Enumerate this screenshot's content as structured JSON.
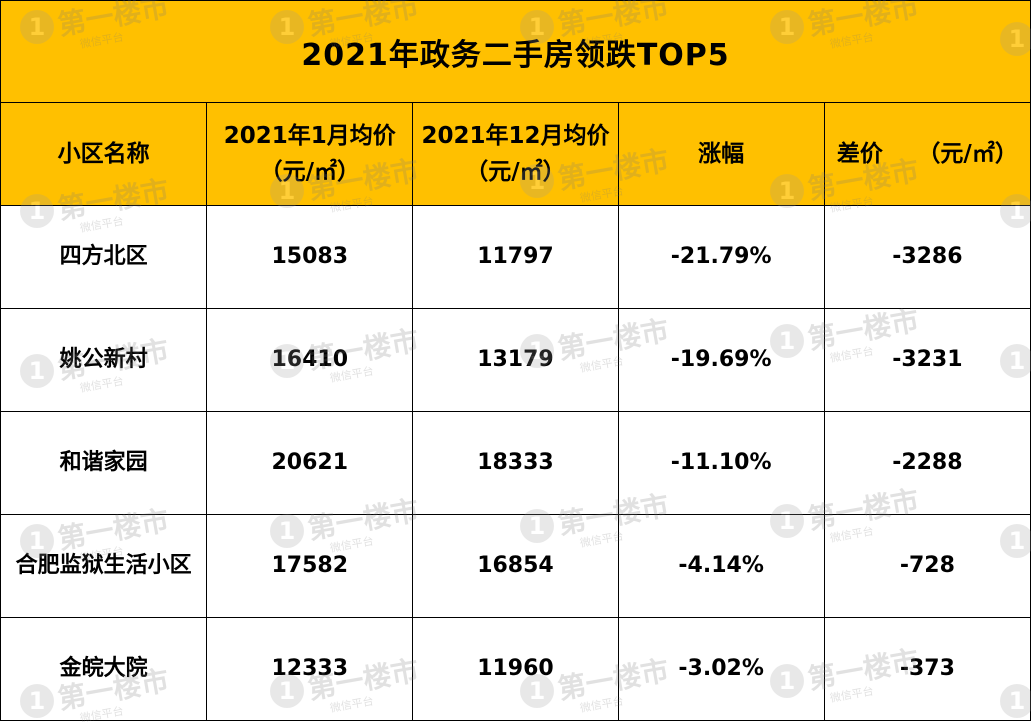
{
  "chart_data": {
    "type": "table",
    "title": "2021年政务二手房领跌TOP5",
    "columns": [
      "小区名称",
      "2021年1月均价（元/㎡）",
      "2021年12月均价（元/㎡）",
      "涨幅",
      "差价　　（元/㎡）"
    ],
    "rows": [
      {
        "name": "四方北区",
        "jan": "15083",
        "dec": "11797",
        "change": "-21.79%",
        "diff": "-3286"
      },
      {
        "name": "姚公新村",
        "jan": "16410",
        "dec": "13179",
        "change": "-19.69%",
        "diff": "-3231"
      },
      {
        "name": "和谐家园",
        "jan": "20621",
        "dec": "18333",
        "change": "-11.10%",
        "diff": "-2288"
      },
      {
        "name": "合肥监狱生活小区",
        "jan": "17582",
        "dec": "16854",
        "change": "-4.14%",
        "diff": "-728"
      },
      {
        "name": "金皖大院",
        "jan": "12333",
        "dec": "11960",
        "change": "-3.02%",
        "diff": "-373"
      }
    ]
  },
  "watermark": {
    "logo_digit": "1",
    "text": "第一楼市",
    "subtext": "微信平台"
  },
  "colors": {
    "header_background": "#ffc000",
    "grid_line": "#000000",
    "body_background": "#ffffff"
  }
}
